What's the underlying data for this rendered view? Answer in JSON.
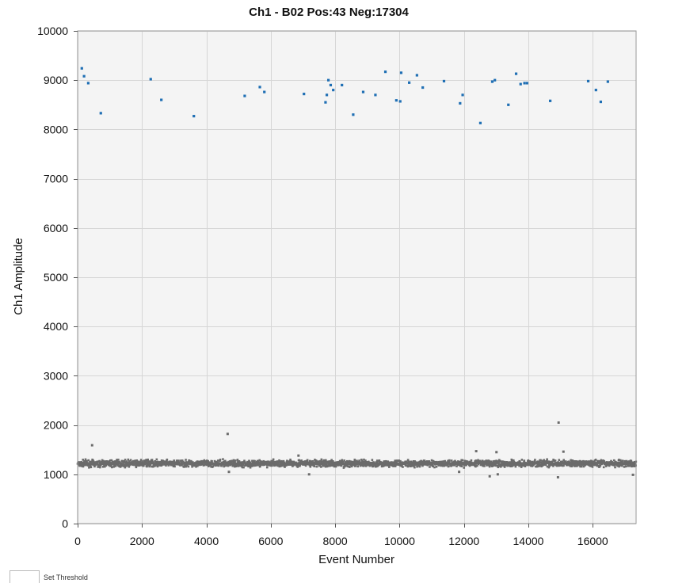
{
  "chart_data": {
    "type": "scatter",
    "title": "Ch1 - B02 Pos:43 Neg:17304",
    "xlabel": "Event Number",
    "ylabel": "Ch1 Amplitude",
    "xlim": [
      0,
      17347
    ],
    "ylim": [
      0,
      10000
    ],
    "x_ticks": [
      0,
      2000,
      4000,
      6000,
      8000,
      10000,
      12000,
      14000,
      16000
    ],
    "y_ticks": [
      0,
      1000,
      2000,
      3000,
      4000,
      5000,
      6000,
      7000,
      8000,
      9000,
      10000
    ],
    "grid": true,
    "colors": {
      "positive": "#1f6fb4",
      "negative": "#6b6b6b",
      "background": "#f4f4f4",
      "grid": "#d6d6d6"
    },
    "series": [
      {
        "name": "Pos",
        "color": "#1f6fb4",
        "points": [
          [
            130,
            9240
          ],
          [
            200,
            9080
          ],
          [
            330,
            8940
          ],
          [
            720,
            8330
          ],
          [
            2270,
            9020
          ],
          [
            2600,
            8600
          ],
          [
            3610,
            8270
          ],
          [
            5190,
            8680
          ],
          [
            5660,
            8860
          ],
          [
            5800,
            8760
          ],
          [
            7030,
            8720
          ],
          [
            7700,
            8550
          ],
          [
            7740,
            8700
          ],
          [
            7790,
            9000
          ],
          [
            7860,
            8900
          ],
          [
            7940,
            8800
          ],
          [
            8210,
            8900
          ],
          [
            8560,
            8300
          ],
          [
            8870,
            8760
          ],
          [
            9250,
            8700
          ],
          [
            9560,
            9170
          ],
          [
            9900,
            8590
          ],
          [
            10020,
            8570
          ],
          [
            10050,
            9150
          ],
          [
            10300,
            8950
          ],
          [
            10540,
            9100
          ],
          [
            10720,
            8850
          ],
          [
            11380,
            8980
          ],
          [
            11880,
            8530
          ],
          [
            11960,
            8700
          ],
          [
            12510,
            8130
          ],
          [
            12880,
            8970
          ],
          [
            12960,
            9000
          ],
          [
            13380,
            8500
          ],
          [
            13620,
            9130
          ],
          [
            13760,
            8920
          ],
          [
            13880,
            8940
          ],
          [
            13960,
            8940
          ],
          [
            14680,
            8580
          ],
          [
            15860,
            8980
          ],
          [
            16100,
            8800
          ],
          [
            16250,
            8560
          ],
          [
            16470,
            8970
          ]
        ]
      },
      {
        "name": "Neg",
        "color": "#6b6b6b",
        "band_center": 1220,
        "band_halfwidth": 80,
        "event_count": 17304,
        "outliers": [
          [
            450,
            1590
          ],
          [
            4660,
            1820
          ],
          [
            4700,
            1050
          ],
          [
            6860,
            1380
          ],
          [
            7190,
            1000
          ],
          [
            11850,
            1050
          ],
          [
            12380,
            1470
          ],
          [
            12800,
            960
          ],
          [
            13010,
            1450
          ],
          [
            13050,
            1000
          ],
          [
            14940,
            2050
          ],
          [
            14920,
            940
          ],
          [
            15090,
            1460
          ],
          [
            17250,
            990
          ]
        ]
      }
    ]
  },
  "footer": {
    "threshold_label": "Set Threshold"
  }
}
